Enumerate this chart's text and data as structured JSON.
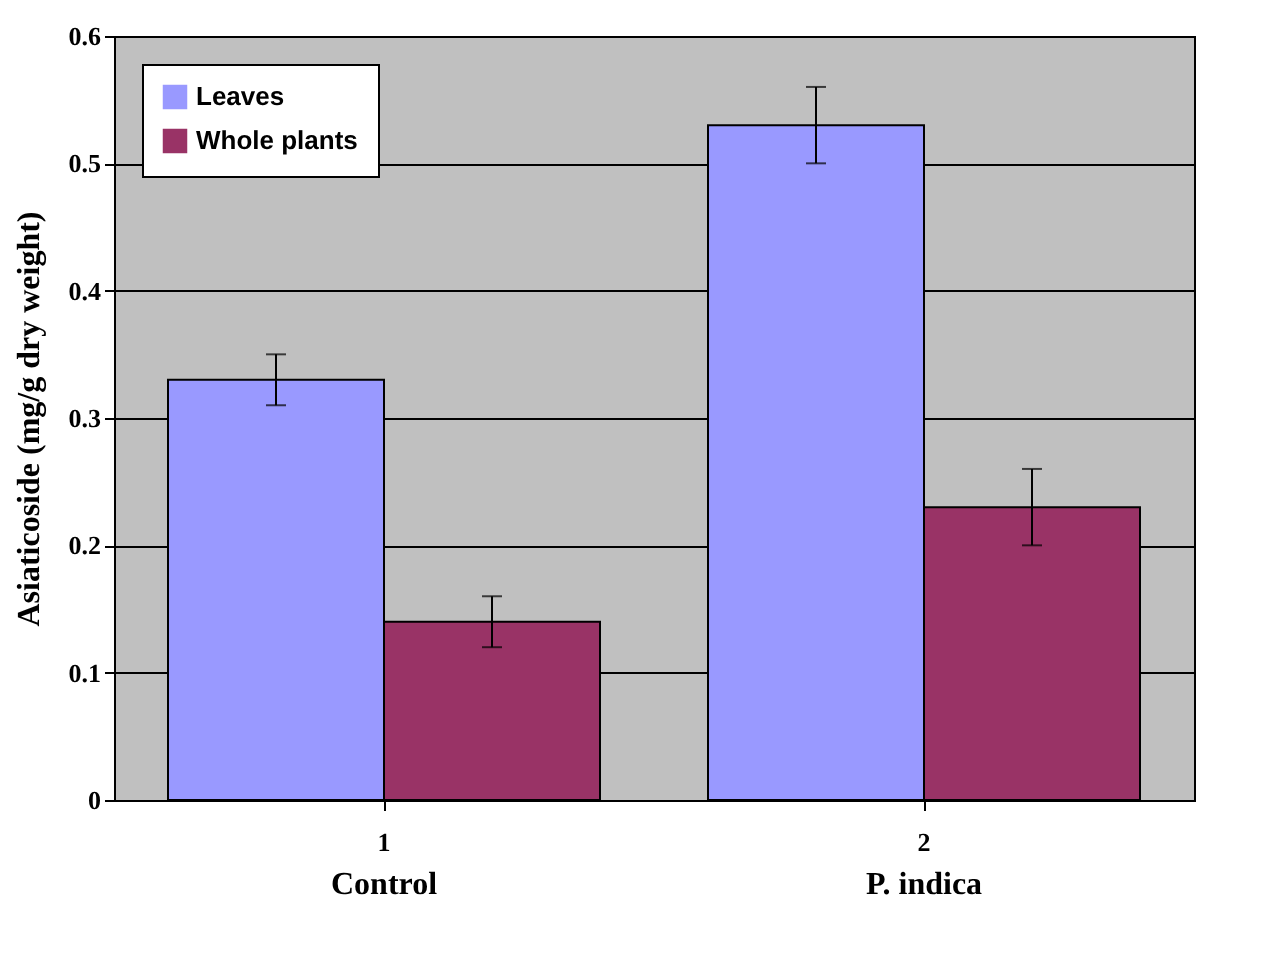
{
  "chart_data": {
    "type": "bar",
    "ylabel": "Asiaticoside (mg/g dry weight)",
    "categories": [
      "1",
      "2"
    ],
    "series": [
      {
        "name": "Leaves",
        "color": "#9999ff",
        "values": [
          0.33,
          0.53
        ],
        "errors": [
          0.02,
          0.03
        ]
      },
      {
        "name": "Whole plants",
        "color": "#993366",
        "values": [
          0.14,
          0.23
        ],
        "errors": [
          0.02,
          0.03
        ]
      }
    ],
    "annotations": [
      "Control",
      "P. indica"
    ],
    "ylim": [
      0,
      0.6
    ],
    "yticks": [
      0,
      0.1,
      0.2,
      0.3,
      0.4,
      0.5,
      0.6
    ],
    "grid": "y",
    "legend": "top left"
  }
}
